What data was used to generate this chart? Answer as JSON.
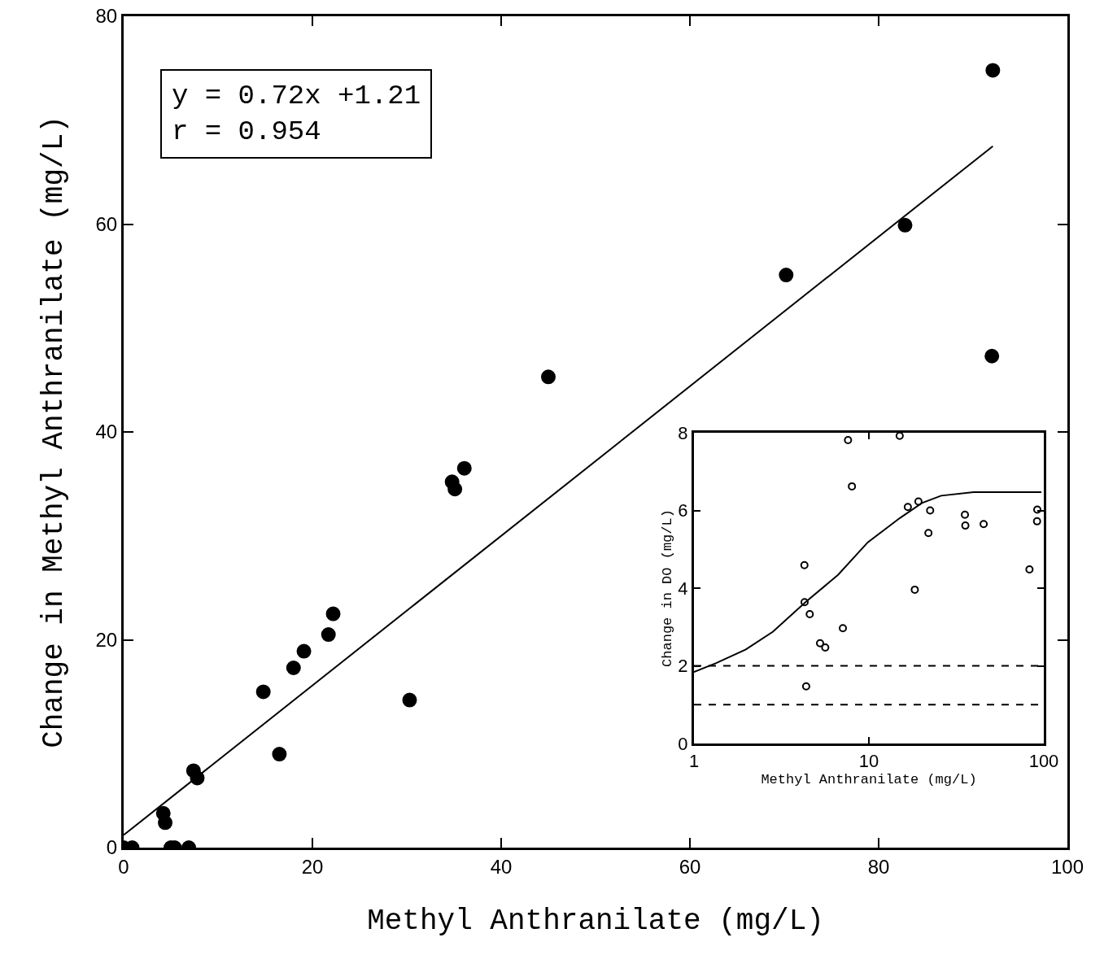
{
  "chart_data": [
    {
      "type": "scatter",
      "xlabel": "Methyl Anthranilate (mg/L)",
      "ylabel": "Change in Methyl Anthranilate (mg/L)",
      "annotations": [
        "y = 0.72x +1.21",
        "r = 0.954"
      ],
      "xlim": [
        0,
        100
      ],
      "xticks": [
        0,
        20,
        40,
        60,
        80,
        100
      ],
      "ylim": [
        0,
        80
      ],
      "yticks": [
        0,
        20,
        40,
        60,
        80
      ],
      "grid": false,
      "series": [
        {
          "marker": "circle",
          "color": "#000000",
          "x": [
            0,
            0.9,
            5.0,
            5.4,
            6.9,
            4.2,
            4.4,
            7.4,
            7.8,
            14.8,
            16.5,
            18.0,
            19.1,
            21.7,
            22.2,
            30.3,
            34.8,
            35.1,
            36.1,
            45.0,
            70.2,
            82.8,
            92.1,
            92.0
          ],
          "values": [
            0,
            0,
            0,
            0,
            0,
            3.3,
            2.4,
            7.4,
            6.7,
            15.0,
            9.0,
            17.3,
            18.9,
            20.5,
            22.5,
            14.2,
            35.2,
            34.5,
            36.5,
            45.3,
            55.1,
            59.9,
            74.8,
            47.3
          ]
        },
        {
          "type": "line",
          "color": "#000000",
          "line_style": "solid",
          "x": [
            0,
            92.1
          ],
          "values": [
            1.21,
            67.5
          ]
        }
      ]
    },
    {
      "type": "scatter",
      "xlabel": "Methyl Anthranilate (mg/L)",
      "ylabel": "Change in DO (mg/L)",
      "log": "x",
      "xlim": [
        1,
        100
      ],
      "xticks": [
        1,
        10,
        100
      ],
      "ylim": [
        0,
        8
      ],
      "yticks": [
        0,
        2,
        4,
        6,
        8
      ],
      "grid": false,
      "ref_lines": [
        {
          "axis": "y",
          "value": 2,
          "color": "#000000",
          "line_style": "dashed"
        },
        {
          "axis": "y",
          "value": 1,
          "color": "#000000",
          "line_style": "dashed"
        }
      ],
      "series": [
        {
          "marker": "circle",
          "color": "#000000",
          "x": [
            7.6,
            15.0,
            8.0,
            16.7,
            19.2,
            22.4,
            35.4,
            35.6,
            45.3,
            91.8,
            91.5,
            21.9,
            82.8,
            4.28,
            18.3,
            4.29,
            4.59,
            7.1,
            5.26,
            5.63,
            4.38
          ],
          "values": [
            7.81,
            7.92,
            6.62,
            6.09,
            6.23,
            6.0,
            5.89,
            5.61,
            5.65,
            6.02,
            5.72,
            5.42,
            4.48,
            4.59,
            3.96,
            3.64,
            3.33,
            2.97,
            2.58,
            2.47,
            1.47
          ]
        },
        {
          "type": "line",
          "color": "#000000",
          "line_style": "solid",
          "x": [
            1.0,
            1.34,
            1.98,
            2.83,
            4.34,
            6.66,
            9.86,
            15.1,
            20.1,
            25.9,
            39.7,
            96.8
          ],
          "values": [
            1.84,
            2.07,
            2.42,
            2.88,
            3.64,
            4.34,
            5.18,
            5.81,
            6.19,
            6.38,
            6.47,
            6.47
          ]
        }
      ]
    }
  ]
}
